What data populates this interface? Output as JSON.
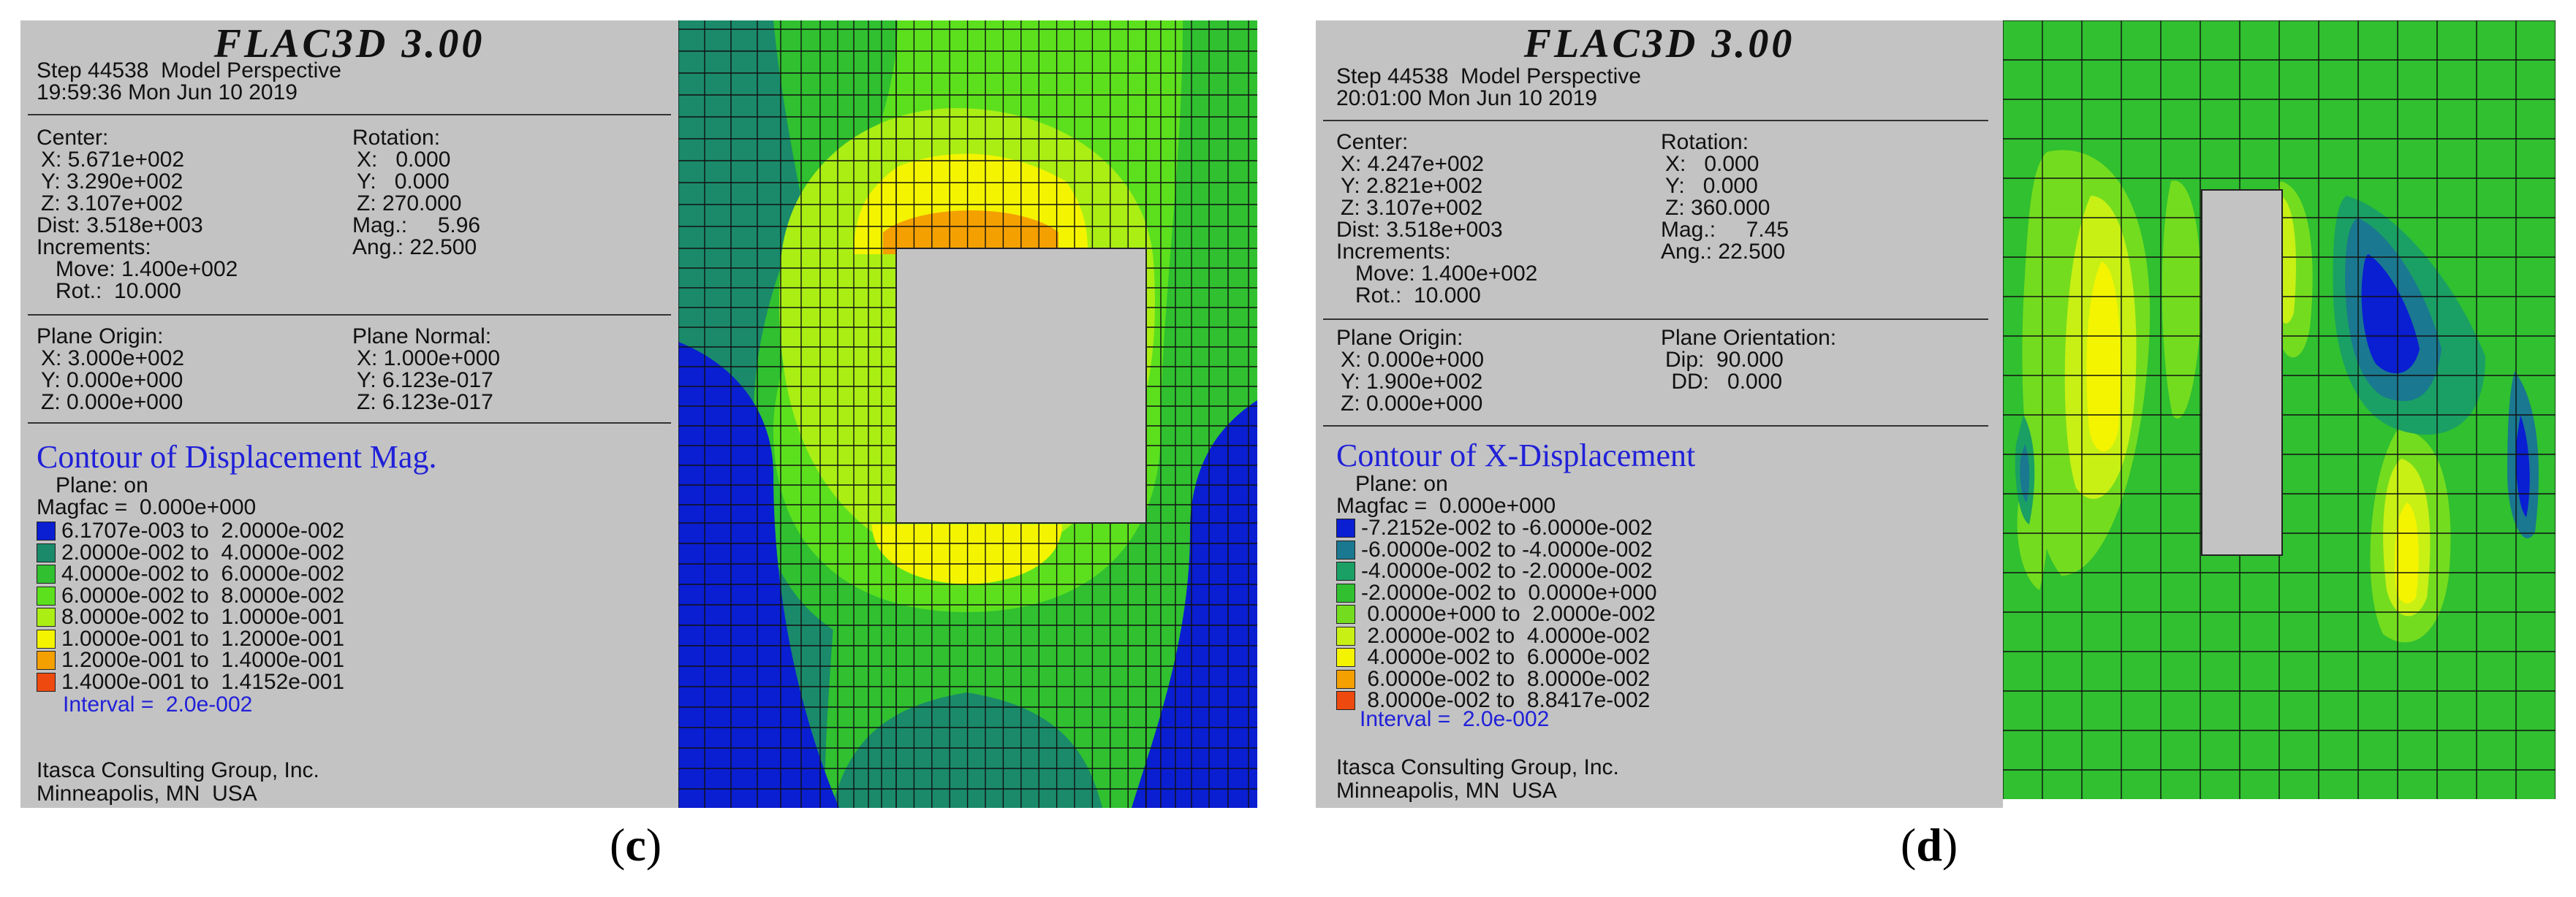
{
  "panels": [
    {
      "caption_letter": "c",
      "app_title": "FLAC3D 3.00",
      "step_line": "Step 44538  Model Perspective",
      "time_line": "19:59:36 Mon Jun 10 2019",
      "center_label": "Center:",
      "center_x": "X: 5.671e+002",
      "center_y": "Y: 3.290e+002",
      "center_z": "Z: 3.107e+002",
      "dist": "Dist: 3.518e+003",
      "increments": "Increments:",
      "move": "Move: 1.400e+002",
      "rot": "Rot.:  10.000",
      "rotation_label": "Rotation:",
      "rot_x": "X:   0.000",
      "rot_y": "Y:   0.000",
      "rot_z": "Z: 270.000",
      "mag": "Mag.:     5.96",
      "ang": "Ang.: 22.500",
      "plane_origin_label": "Plane Origin:",
      "po_x": "X: 3.000e+002",
      "po_y": "Y: 0.000e+000",
      "po_z": "Z: 0.000e+000",
      "plane_right_label": "Plane Normal:",
      "pr_1": "X: 1.000e+000",
      "pr_2": "Y: 6.123e-017",
      "pr_3": "Z: 6.123e-017",
      "contour_title": "Contour of Displacement Mag.",
      "plane_on": "Plane: on",
      "magfac": "Magfac =  0.000e+000",
      "legend": [
        {
          "text": "6.1707e-003 to  2.0000e-002",
          "color": "#0a1ed2"
        },
        {
          "text": "2.0000e-002 to  4.0000e-002",
          "color": "#1a8a6a"
        },
        {
          "text": "4.0000e-002 to  6.0000e-002",
          "color": "#30c030"
        },
        {
          "text": "6.0000e-002 to  8.0000e-002",
          "color": "#5ce01e"
        },
        {
          "text": "8.0000e-002 to  1.0000e-001",
          "color": "#aaee14"
        },
        {
          "text": "1.0000e-001 to  1.2000e-001",
          "color": "#f4f400"
        },
        {
          "text": "1.2000e-001 to  1.4000e-001",
          "color": "#f4a000"
        },
        {
          "text": "1.4000e-001 to  1.4152e-001",
          "color": "#ee4a10"
        }
      ],
      "interval": "Interval =  2.0e-002",
      "company": "Itasca Consulting Group, Inc.",
      "location": "Minneapolis, MN  USA"
    },
    {
      "caption_letter": "d",
      "app_title": "FLAC3D 3.00",
      "step_line": "Step 44538  Model Perspective",
      "time_line": "20:01:00 Mon Jun 10 2019",
      "center_label": "Center:",
      "center_x": "X: 4.247e+002",
      "center_y": "Y: 2.821e+002",
      "center_z": "Z: 3.107e+002",
      "dist": "Dist: 3.518e+003",
      "increments": "Increments:",
      "move": "Move: 1.400e+002",
      "rot": "Rot.:  10.000",
      "rotation_label": "Rotation:",
      "rot_x": "X:   0.000",
      "rot_y": "Y:   0.000",
      "rot_z": "Z: 360.000",
      "mag": "Mag.:     7.45",
      "ang": "Ang.: 22.500",
      "plane_origin_label": "Plane Origin:",
      "po_x": "X: 0.000e+000",
      "po_y": "Y: 1.900e+002",
      "po_z": "Z: 0.000e+000",
      "plane_right_label": "Plane Orientation:",
      "pr_1": "Dip:  90.000",
      "pr_2": " DD:   0.000",
      "pr_3": "",
      "contour_title": "Contour of X-Displacement",
      "plane_on": "Plane: on",
      "magfac": "Magfac =  0.000e+000",
      "legend": [
        {
          "text": "-7.2152e-002 to -6.0000e-002",
          "color": "#0a1ed2"
        },
        {
          "text": "-6.0000e-002 to -4.0000e-002",
          "color": "#1a7890"
        },
        {
          "text": "-4.0000e-002 to -2.0000e-002",
          "color": "#1aa064"
        },
        {
          "text": "-2.0000e-002 to  0.0000e+000",
          "color": "#30c030"
        },
        {
          "text": " 0.0000e+000 to  2.0000e-002",
          "color": "#74dc1e"
        },
        {
          "text": " 2.0000e-002 to  4.0000e-002",
          "color": "#c8f014"
        },
        {
          "text": " 4.0000e-002 to  6.0000e-002",
          "color": "#f4f400"
        },
        {
          "text": " 6.0000e-002 to  8.0000e-002",
          "color": "#f4a000"
        },
        {
          "text": " 8.0000e-002 to  8.8417e-002",
          "color": "#ee4a10"
        }
      ],
      "interval": "Interval =  2.0e-002",
      "company": "Itasca Consulting Group, Inc.",
      "location": "Minneapolis, MN  USA"
    }
  ]
}
